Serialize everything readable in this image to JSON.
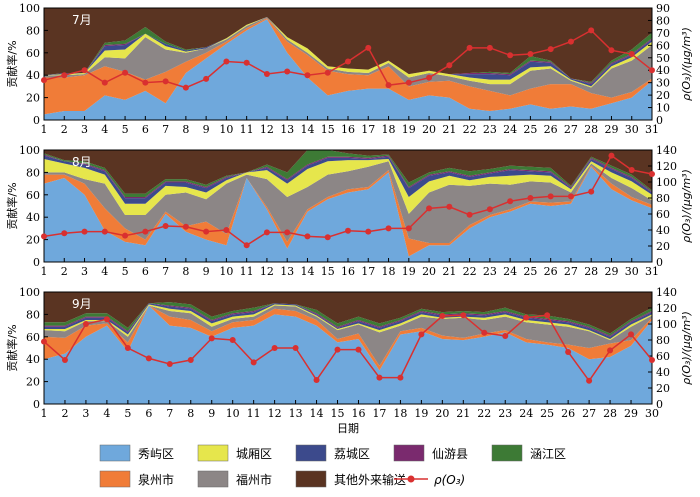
{
  "figure": {
    "xlabel": "日期",
    "ylabel_left": "贡献率/%",
    "ylabel_right": "ρ(O₃)/(μg/m³)"
  },
  "colors": {
    "xiuyu": "#6fa8dc",
    "chengxiang": "#e6e64c",
    "licheng": "#3c4a8c",
    "xianyou": "#7a2a6e",
    "hanjiang": "#3d7a35",
    "quanzhou": "#f07c38",
    "fuzhou": "#8c8686",
    "other": "#5a3422",
    "o3": "#d93030"
  },
  "legend": [
    {
      "key": "xiuyu",
      "label": "秀屿区",
      "kind": "box"
    },
    {
      "key": "chengxiang",
      "label": "城厢区",
      "kind": "box"
    },
    {
      "key": "licheng",
      "label": "荔城区",
      "kind": "box"
    },
    {
      "key": "xianyou",
      "label": "仙游县",
      "kind": "box"
    },
    {
      "key": "hanjiang",
      "label": "涵江区",
      "kind": "box"
    },
    {
      "key": "quanzhou",
      "label": "泉州市",
      "kind": "box"
    },
    {
      "key": "fuzhou",
      "label": "福州市",
      "kind": "box"
    },
    {
      "key": "other",
      "label": "其他外来输送",
      "kind": "box"
    },
    {
      "key": "o3",
      "label": "ρ(O₃)",
      "kind": "line"
    }
  ],
  "chart_data": [
    {
      "type": "area",
      "month_label": "7月",
      "days": 31,
      "ylim_left": [
        0,
        100
      ],
      "ylim_right": [
        0,
        90
      ],
      "yticks_left": [
        0,
        20,
        40,
        60,
        80,
        100
      ],
      "yticks_right": [
        0,
        10,
        20,
        30,
        40,
        50,
        60,
        70,
        80,
        90
      ],
      "stacked_series_keys": [
        "xiuyu",
        "quanzhou",
        "fuzhou",
        "chengxiang",
        "licheng",
        "xianyou",
        "hanjiang",
        "other"
      ],
      "series": {
        "xiuyu": [
          5,
          8,
          8,
          22,
          18,
          26,
          15,
          42,
          55,
          68,
          80,
          90,
          60,
          38,
          22,
          26,
          28,
          28,
          18,
          22,
          20,
          10,
          8,
          10,
          14,
          10,
          12,
          10,
          15,
          20,
          35
        ],
        "quanzhou": [
          33,
          30,
          32,
          26,
          25,
          10,
          28,
          10,
          5,
          2,
          2,
          1,
          10,
          20,
          22,
          15,
          12,
          20,
          12,
          12,
          15,
          20,
          18,
          12,
          14,
          22,
          20,
          14,
          5,
          5,
          2
        ],
        "fuzhou": [
          2,
          2,
          1,
          8,
          12,
          38,
          20,
          8,
          4,
          2,
          2,
          1,
          2,
          2,
          2,
          2,
          2,
          3,
          8,
          8,
          4,
          5,
          6,
          10,
          16,
          14,
          3,
          5,
          26,
          28,
          30
        ],
        "chengxiang": [
          0,
          1,
          1,
          6,
          8,
          3,
          3,
          1,
          0,
          1,
          1,
          0,
          2,
          4,
          2,
          3,
          3,
          2,
          3,
          2,
          2,
          3,
          4,
          4,
          3,
          2,
          1,
          1,
          2,
          3,
          3
        ],
        "licheng": [
          0,
          1,
          0,
          4,
          4,
          0,
          2,
          1,
          1,
          0,
          0,
          0,
          0,
          0,
          0,
          0,
          0,
          0,
          0,
          0,
          0,
          3,
          5,
          4,
          5,
          3,
          1,
          2,
          2,
          2,
          2
        ],
        "xianyou": [
          0,
          0,
          0,
          1,
          1,
          0,
          0,
          0,
          0,
          0,
          0,
          0,
          0,
          0,
          0,
          0,
          0,
          0,
          0,
          0,
          0,
          1,
          1,
          1,
          1,
          1,
          0,
          1,
          1,
          1,
          1
        ],
        "hanjiang": [
          0,
          0,
          0,
          2,
          3,
          6,
          2,
          1,
          0,
          0,
          0,
          0,
          0,
          0,
          0,
          0,
          0,
          0,
          0,
          0,
          0,
          0,
          1,
          1,
          4,
          1,
          0,
          1,
          2,
          4,
          5
        ],
        "other": [
          60,
          58,
          58,
          31,
          29,
          17,
          30,
          37,
          35,
          27,
          15,
          8,
          26,
          36,
          52,
          54,
          55,
          47,
          59,
          56,
          59,
          58,
          57,
          58,
          43,
          47,
          63,
          66,
          47,
          37,
          22
        ]
      },
      "o3": [
        32,
        36,
        40,
        30,
        38,
        30,
        31,
        26,
        33,
        47,
        46,
        37,
        39,
        36,
        38,
        47,
        58,
        28,
        30,
        34,
        44,
        58,
        58,
        52,
        53,
        57,
        63,
        72,
        56,
        53,
        40
      ]
    },
    {
      "type": "area",
      "month_label": "8月",
      "days": 31,
      "ylim_left": [
        0,
        100
      ],
      "ylim_right": [
        0,
        140
      ],
      "yticks_left": [
        0,
        20,
        40,
        60,
        80,
        100
      ],
      "yticks_right": [
        0,
        20,
        40,
        60,
        80,
        100,
        120,
        140
      ],
      "stacked_series_keys": [
        "xiuyu",
        "quanzhou",
        "fuzhou",
        "chengxiang",
        "licheng",
        "xianyou",
        "hanjiang",
        "other"
      ],
      "series": {
        "xiuyu": [
          70,
          75,
          60,
          28,
          18,
          15,
          43,
          27,
          20,
          15,
          75,
          47,
          12,
          45,
          56,
          62,
          65,
          80,
          5,
          15,
          15,
          30,
          40,
          45,
          52,
          50,
          52,
          85,
          65,
          55,
          48
        ],
        "quanzhou": [
          8,
          3,
          10,
          20,
          12,
          5,
          2,
          5,
          16,
          10,
          0,
          2,
          6,
          2,
          2,
          3,
          2,
          2,
          16,
          2,
          2,
          3,
          2,
          2,
          2,
          3,
          2,
          1,
          5,
          3,
          3
        ],
        "fuzhou": [
          2,
          2,
          4,
          22,
          12,
          22,
          15,
          30,
          20,
          45,
          3,
          25,
          40,
          20,
          20,
          16,
          18,
          8,
          22,
          45,
          52,
          35,
          28,
          22,
          18,
          18,
          8,
          2,
          5,
          8,
          4
        ],
        "chengxiang": [
          12,
          8,
          10,
          8,
          10,
          10,
          8,
          5,
          6,
          3,
          2,
          8,
          12,
          16,
          12,
          10,
          6,
          2,
          15,
          10,
          8,
          5,
          6,
          8,
          6,
          6,
          3,
          2,
          5,
          6,
          5
        ],
        "licheng": [
          3,
          2,
          3,
          3,
          5,
          5,
          3,
          4,
          4,
          2,
          0,
          2,
          3,
          3,
          3,
          2,
          1,
          2,
          8,
          5,
          3,
          3,
          3,
          5,
          3,
          3,
          1,
          2,
          3,
          3,
          2
        ],
        "xianyou": [
          1,
          0,
          1,
          1,
          1,
          1,
          1,
          1,
          1,
          1,
          0,
          1,
          1,
          1,
          1,
          1,
          1,
          1,
          1,
          1,
          1,
          1,
          1,
          1,
          1,
          1,
          1,
          1,
          1,
          1,
          1
        ],
        "hanjiang": [
          1,
          1,
          2,
          2,
          3,
          3,
          2,
          2,
          2,
          1,
          0,
          2,
          6,
          13,
          6,
          3,
          2,
          1,
          4,
          2,
          3,
          4,
          3,
          3,
          3,
          3,
          1,
          1,
          2,
          2,
          1
        ],
        "other": [
          3,
          9,
          10,
          16,
          39,
          39,
          26,
          26,
          31,
          23,
          20,
          13,
          20,
          0,
          0,
          3,
          5,
          4,
          29,
          20,
          16,
          19,
          17,
          14,
          15,
          16,
          32,
          6,
          14,
          22,
          36
        ]
      },
      "o3": [
        32,
        36,
        38,
        38,
        33,
        38,
        45,
        44,
        38,
        40,
        21,
        37,
        37,
        32,
        31,
        39,
        38,
        42,
        42,
        67,
        69,
        59,
        66,
        76,
        80,
        82,
        82,
        88,
        133,
        115,
        110
      ]
    },
    {
      "type": "area",
      "month_label": "9月",
      "days": 30,
      "ylim_left": [
        0,
        100
      ],
      "ylim_right": [
        0,
        140
      ],
      "yticks_left": [
        0,
        20,
        40,
        60,
        80,
        100
      ],
      "yticks_right": [
        0,
        20,
        40,
        60,
        80,
        100,
        120,
        140
      ],
      "stacked_series_keys": [
        "xiuyu",
        "quanzhou",
        "fuzhou",
        "chengxiang",
        "licheng",
        "xianyou",
        "hanjiang",
        "other"
      ],
      "series": {
        "xiuyu": [
          40,
          45,
          60,
          70,
          47,
          88,
          70,
          68,
          60,
          68,
          70,
          80,
          78,
          70,
          55,
          58,
          30,
          62,
          65,
          58,
          57,
          60,
          64,
          55,
          53,
          50,
          40,
          42,
          52,
          75
        ],
        "quanzhou": [
          20,
          14,
          10,
          2,
          8,
          0,
          8,
          7,
          5,
          5,
          5,
          5,
          5,
          5,
          3,
          5,
          4,
          3,
          3,
          3,
          2,
          3,
          2,
          3,
          2,
          3,
          10,
          12,
          5,
          2
        ],
        "fuzhou": [
          6,
          6,
          4,
          2,
          5,
          0,
          5,
          6,
          4,
          3,
          3,
          3,
          4,
          3,
          8,
          8,
          30,
          5,
          10,
          15,
          18,
          12,
          12,
          15,
          16,
          16,
          15,
          3,
          12,
          2
        ],
        "chengxiang": [
          1,
          2,
          1,
          1,
          2,
          1,
          2,
          2,
          3,
          2,
          2,
          1,
          1,
          1,
          1,
          1,
          2,
          2,
          2,
          1,
          1,
          2,
          2,
          2,
          2,
          2,
          1,
          1,
          2,
          1
        ],
        "licheng": [
          2,
          2,
          2,
          2,
          2,
          1,
          2,
          2,
          2,
          2,
          2,
          1,
          1,
          1,
          1,
          2,
          2,
          2,
          2,
          2,
          2,
          2,
          2,
          2,
          2,
          2,
          2,
          2,
          2,
          2
        ],
        "xianyou": [
          1,
          1,
          1,
          1,
          1,
          0,
          1,
          1,
          1,
          1,
          1,
          0,
          0,
          1,
          1,
          1,
          1,
          1,
          1,
          1,
          1,
          1,
          1,
          1,
          1,
          1,
          1,
          1,
          1,
          1
        ],
        "hanjiang": [
          3,
          3,
          3,
          3,
          3,
          0,
          3,
          3,
          3,
          2,
          3,
          0,
          0,
          3,
          3,
          3,
          3,
          2,
          2,
          2,
          2,
          2,
          3,
          2,
          3,
          2,
          2,
          2,
          2,
          3
        ],
        "other": [
          27,
          27,
          19,
          19,
          32,
          10,
          9,
          11,
          22,
          17,
          14,
          10,
          11,
          16,
          28,
          22,
          28,
          23,
          15,
          18,
          17,
          18,
          14,
          20,
          21,
          24,
          29,
          37,
          24,
          14
        ]
      },
      "o3": [
        78,
        55,
        100,
        106,
        70,
        57,
        50,
        55,
        82,
        80,
        52,
        70,
        70,
        30,
        68,
        68,
        33,
        33,
        87,
        110,
        111,
        89,
        85,
        108,
        111,
        65,
        29,
        67,
        87,
        55
      ]
    }
  ]
}
